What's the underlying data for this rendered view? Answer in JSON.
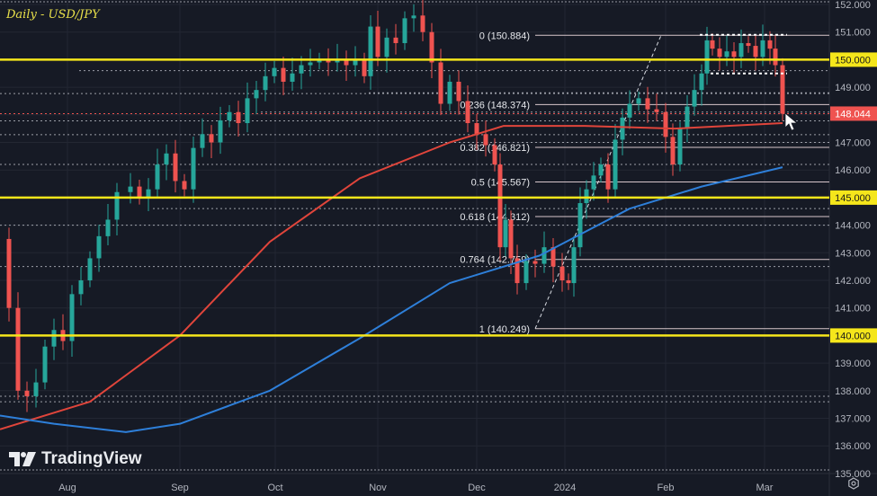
{
  "header": {
    "title": "Daily - USD/JPY"
  },
  "branding": {
    "logo_text": "TradingView"
  },
  "price_axis": {
    "ticks": [
      "152.000",
      "151.000",
      "150.000",
      "149.000",
      "148.000",
      "147.000",
      "146.000",
      "145.000",
      "144.000",
      "143.000",
      "142.000",
      "141.000",
      "140.000",
      "139.000",
      "138.000",
      "137.000",
      "136.000",
      "135.000"
    ],
    "highlighted_levels": [
      "150.000",
      "145.000",
      "140.000"
    ],
    "last_price": "148.044"
  },
  "time_axis": {
    "labels": [
      "Aug",
      "Sep",
      "Oct",
      "Nov",
      "Dec",
      "2024",
      "Feb",
      "Mar"
    ]
  },
  "colors": {
    "background": "#161a25",
    "up": "#26a69a",
    "down": "#ef5350",
    "sma_red": "#e0453b",
    "sma_blue": "#2e7fd9",
    "level_yellow": "#f5e61b",
    "text": "#b2b5be",
    "last_price_bg": "#ef5350"
  },
  "chart_data": {
    "type": "candlestick",
    "title": "Daily - USD/JPY",
    "xlabel": "",
    "ylabel": "",
    "ylim": [
      135,
      152
    ],
    "grid": true,
    "x_ticks": [
      "Aug",
      "Sep",
      "Oct",
      "Nov",
      "Dec",
      "2024",
      "Feb",
      "Mar"
    ],
    "horizontal_levels": [
      150.0,
      145.0,
      140.0
    ],
    "fibonacci_retracement": [
      {
        "ratio": "0",
        "price": 150.884
      },
      {
        "ratio": "0.236",
        "price": 148.374
      },
      {
        "ratio": "0.382",
        "price": 146.821
      },
      {
        "ratio": "0.5",
        "price": 145.567
      },
      {
        "ratio": "0.618",
        "price": 144.312
      },
      {
        "ratio": "0.764",
        "price": 142.759
      },
      {
        "ratio": "1",
        "price": 140.249
      }
    ],
    "fib_labels": [
      "0 (150.884)",
      "0.236 (148.374)",
      "0.382 (146.821)",
      "0.5 (145.567)",
      "0.618 (144.312)",
      "0.764 (142.759)",
      "1 (140.249)"
    ],
    "last_price": 148.044,
    "series": [
      {
        "name": "Moving average (red)",
        "approx_points": [
          [
            0,
            136.6
          ],
          [
            100,
            137.6
          ],
          [
            200,
            140.0
          ],
          [
            300,
            143.4
          ],
          [
            400,
            145.7
          ],
          [
            500,
            147.0
          ],
          [
            560,
            147.6
          ],
          [
            650,
            147.6
          ],
          [
            750,
            147.5
          ],
          [
            870,
            147.7
          ]
        ]
      },
      {
        "name": "Moving average (blue)",
        "approx_points": [
          [
            0,
            137.1
          ],
          [
            60,
            136.8
          ],
          [
            140,
            136.5
          ],
          [
            200,
            136.8
          ],
          [
            300,
            138.0
          ],
          [
            400,
            139.9
          ],
          [
            500,
            141.9
          ],
          [
            600,
            142.9
          ],
          [
            700,
            144.6
          ],
          [
            780,
            145.4
          ],
          [
            870,
            146.1
          ]
        ]
      }
    ]
  }
}
